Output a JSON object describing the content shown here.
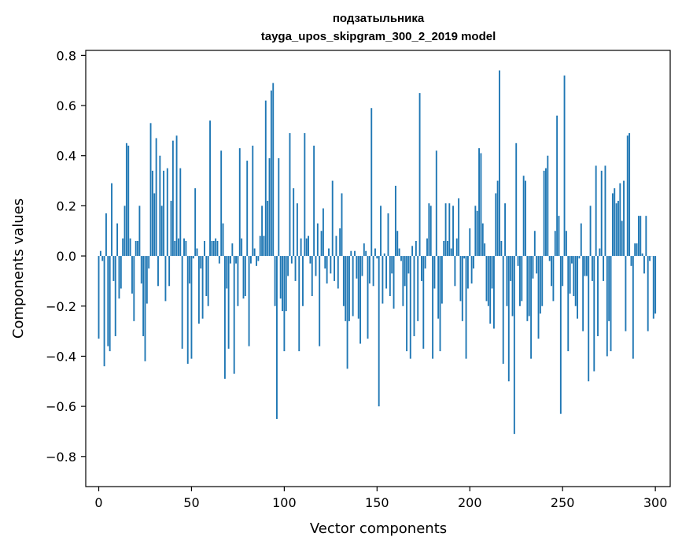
{
  "chart_data": {
    "type": "bar",
    "title_line1": "подзатыльника",
    "title_line2": "tayga_upos_skipgram_300_2_2019 model",
    "xlabel": "Vector components",
    "ylabel": "Components values",
    "xlim": [
      -7,
      308
    ],
    "ylim": [
      -0.92,
      0.82
    ],
    "x_ticks": [
      0,
      50,
      100,
      150,
      200,
      250,
      300
    ],
    "x_tick_labels": [
      "0",
      "50",
      "100",
      "150",
      "200",
      "250",
      "300"
    ],
    "y_ticks": [
      -0.8,
      -0.6,
      -0.4,
      -0.2,
      0.0,
      0.2,
      0.4,
      0.6,
      0.8
    ],
    "y_tick_labels": [
      "−0.8",
      "−0.6",
      "−0.4",
      "−0.2",
      "0.0",
      "0.2",
      "0.4",
      "0.6",
      "0.8"
    ],
    "grid": false,
    "bar_color": "#1f77b4",
    "values": [
      -0.33,
      0.02,
      -0.02,
      -0.44,
      0.17,
      -0.36,
      -0.38,
      0.29,
      -0.1,
      -0.32,
      0.13,
      -0.17,
      -0.13,
      0.07,
      0.2,
      0.45,
      0.44,
      0.07,
      -0.15,
      -0.26,
      0.06,
      0.06,
      0.2,
      -0.11,
      -0.32,
      -0.42,
      -0.19,
      -0.05,
      0.53,
      0.34,
      0.25,
      0.47,
      -0.12,
      0.4,
      0.2,
      0.34,
      -0.18,
      0.35,
      -0.12,
      0.22,
      0.46,
      0.06,
      0.48,
      0.07,
      0.35,
      -0.37,
      0.07,
      0.06,
      -0.43,
      -0.11,
      -0.41,
      -0.01,
      0.27,
      0.03,
      -0.27,
      -0.05,
      -0.25,
      0.06,
      -0.16,
      -0.2,
      0.54,
      0.06,
      0.06,
      0.07,
      0.06,
      -0.03,
      0.42,
      0.13,
      -0.49,
      -0.13,
      -0.37,
      -0.03,
      0.05,
      -0.47,
      -0.03,
      -0.2,
      0.43,
      0.07,
      -0.17,
      -0.16,
      0.38,
      -0.36,
      -0.03,
      0.44,
      0.03,
      -0.04,
      -0.02,
      0.08,
      0.2,
      0.08,
      0.62,
      0.22,
      0.39,
      0.66,
      0.69,
      -0.2,
      -0.65,
      0.39,
      -0.17,
      -0.22,
      -0.38,
      -0.22,
      -0.08,
      0.49,
      -0.03,
      0.27,
      -0.1,
      0.21,
      -0.38,
      0.07,
      -0.2,
      0.49,
      0.07,
      0.08,
      -0.03,
      -0.16,
      0.44,
      -0.08,
      0.13,
      -0.36,
      0.1,
      0.19,
      -0.05,
      -0.11,
      0.03,
      -0.07,
      0.3,
      -0.1,
      0.08,
      -0.13,
      0.11,
      0.25,
      -0.2,
      -0.26,
      -0.45,
      -0.26,
      0.02,
      -0.24,
      0.02,
      -0.09,
      -0.25,
      -0.35,
      -0.08,
      0.05,
      0.02,
      -0.33,
      -0.11,
      0.59,
      -0.12,
      0.03,
      -0.01,
      -0.6,
      0.2,
      -0.19,
      0.01,
      -0.13,
      0.17,
      -0.16,
      -0.07,
      -0.21,
      0.28,
      0.1,
      0.03,
      -0.02,
      -0.2,
      -0.12,
      -0.38,
      -0.07,
      -0.41,
      0.04,
      -0.32,
      0.06,
      -0.26,
      0.65,
      -0.1,
      -0.37,
      -0.05,
      0.07,
      0.21,
      0.2,
      -0.41,
      -0.13,
      0.42,
      -0.25,
      -0.38,
      -0.19,
      0.06,
      0.21,
      0.06,
      0.21,
      0.03,
      0.2,
      -0.12,
      0.07,
      0.23,
      -0.18,
      -0.26,
      -0.01,
      -0.41,
      -0.13,
      0.11,
      -0.11,
      -0.05,
      0.2,
      0.18,
      0.43,
      0.41,
      0.13,
      0.05,
      -0.18,
      -0.2,
      -0.27,
      -0.13,
      -0.29,
      0.25,
      0.3,
      0.74,
      0.06,
      -0.43,
      0.21,
      -0.2,
      -0.5,
      -0.1,
      -0.24,
      -0.71,
      0.45,
      -0.04,
      -0.2,
      -0.18,
      0.32,
      0.3,
      -0.26,
      -0.24,
      -0.41,
      -0.09,
      0.1,
      -0.07,
      -0.33,
      -0.23,
      -0.2,
      0.34,
      0.35,
      0.4,
      -0.02,
      -0.12,
      -0.18,
      0.1,
      0.56,
      0.16,
      -0.63,
      -0.12,
      0.72,
      0.1,
      -0.38,
      -0.15,
      -0.03,
      -0.16,
      -0.2,
      -0.25,
      -0.01,
      0.13,
      -0.3,
      -0.08,
      -0.08,
      -0.5,
      0.2,
      -0.1,
      -0.46,
      0.36,
      -0.32,
      0.03,
      0.34,
      -0.1,
      0.36,
      -0.4,
      -0.26,
      -0.38,
      0.25,
      0.27,
      0.21,
      0.22,
      0.29,
      0.14,
      0.3,
      -0.3,
      0.48,
      0.49,
      -0.04,
      -0.41,
      0.05,
      0.05,
      0.16,
      0.16,
      0.01,
      -0.07,
      0.16,
      -0.3,
      -0.02,
      0.0,
      -0.25,
      -0.23
    ]
  }
}
